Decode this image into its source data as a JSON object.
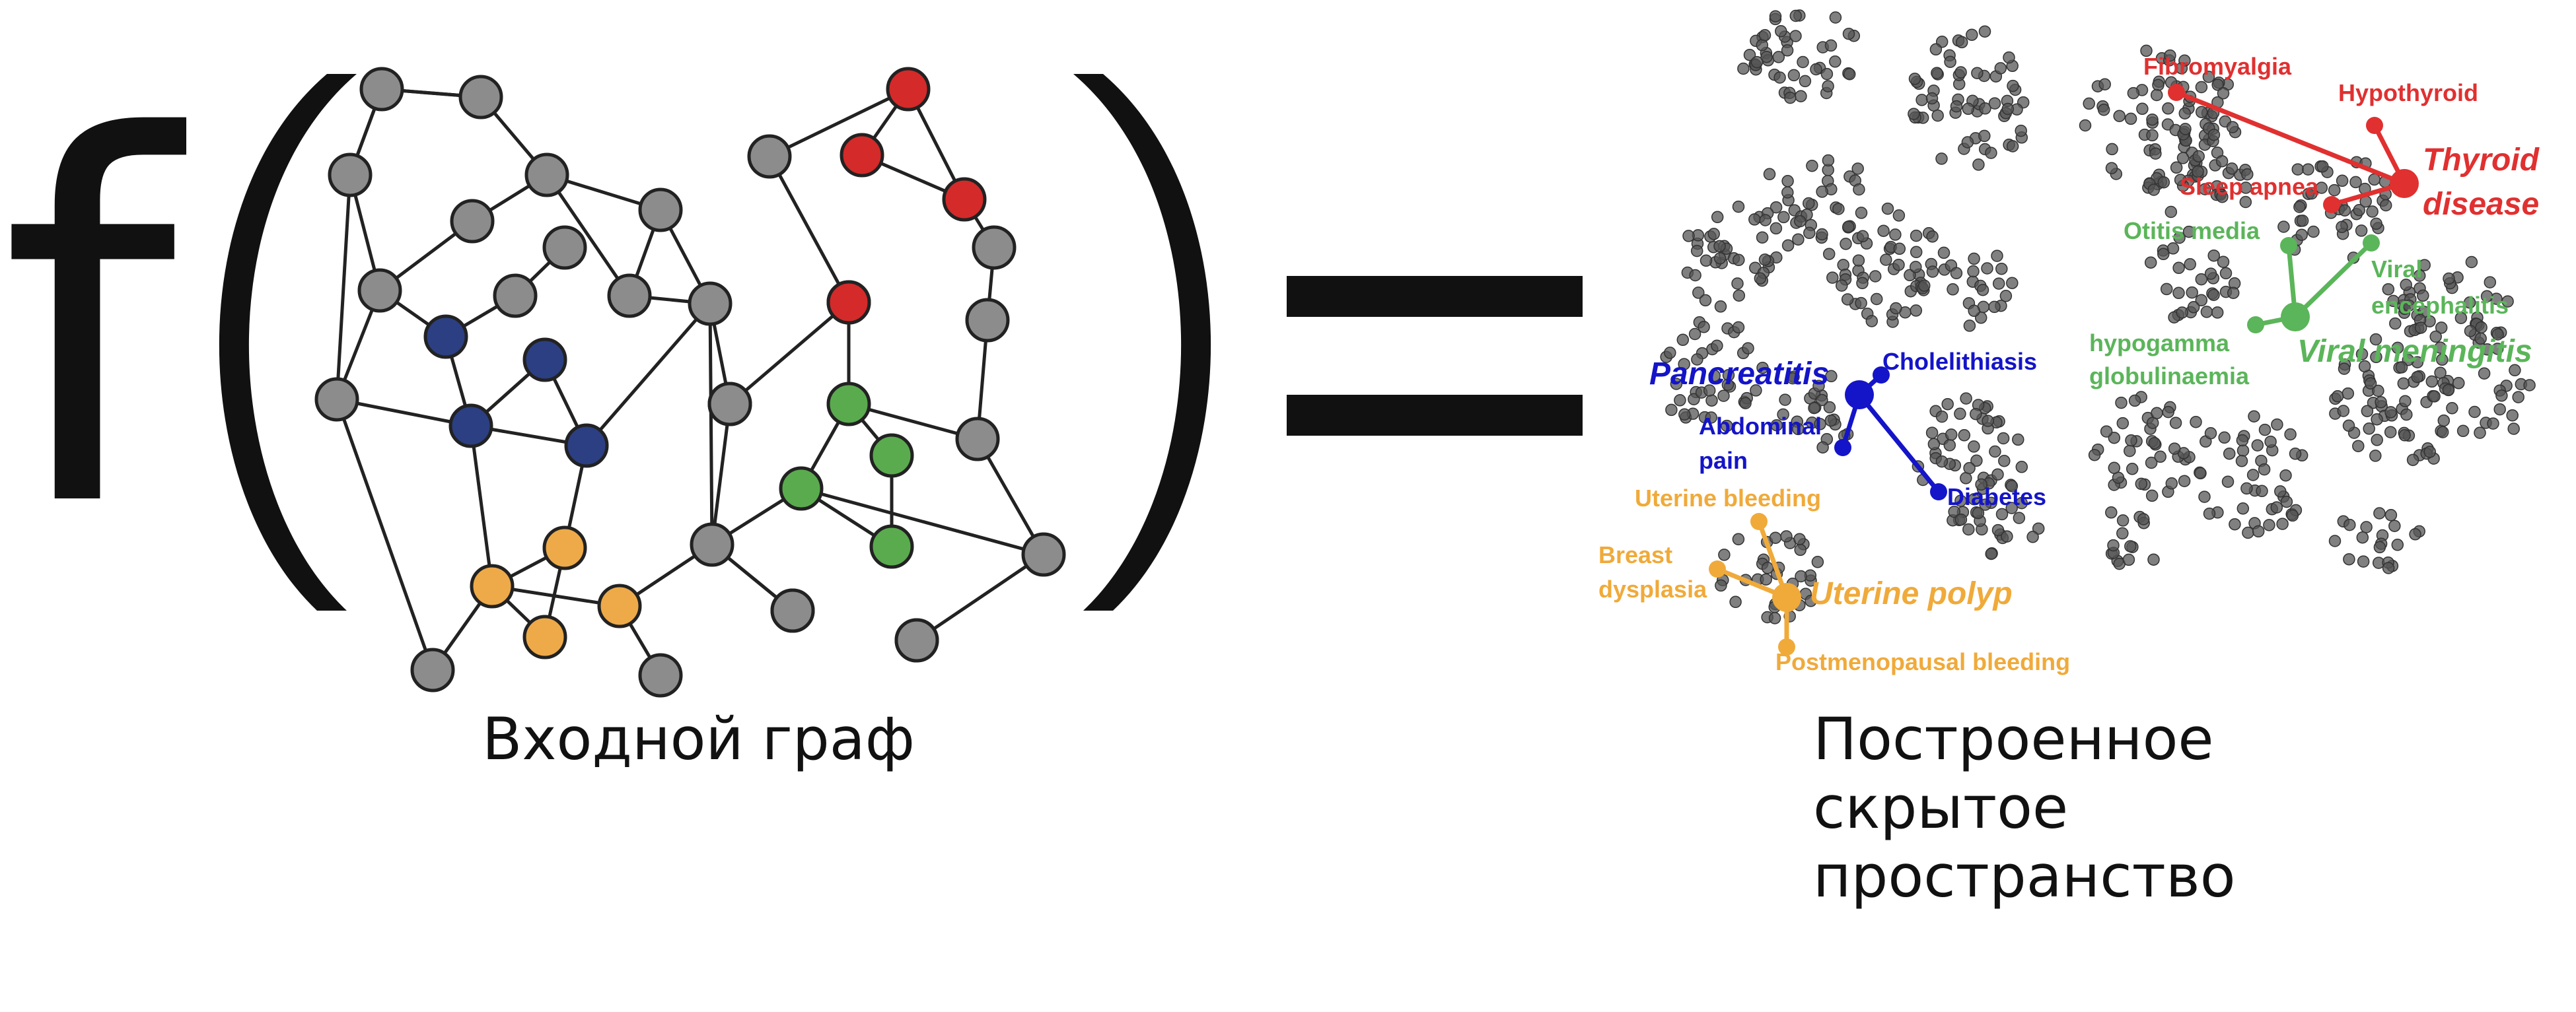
{
  "formula": {
    "function_symbol": "f",
    "open_paren": "(",
    "close_paren": ")",
    "equals": "="
  },
  "captions": {
    "input": "Входной граф",
    "output_lines": [
      "Построенное",
      "скрытое",
      "пространство"
    ]
  },
  "colors": {
    "gray": "#8c8c8c",
    "red": "#d42a2a",
    "navy": "#2b3f82",
    "green": "#5aab4e",
    "orange": "#eeaa48",
    "label_red": "#e03030",
    "label_blue": "#1414c8",
    "label_green": "#5bb55a",
    "label_orange": "#f0aa3a",
    "dots": "#555555"
  },
  "graph": {
    "nodes": [
      {
        "id": 0,
        "group": "gray"
      },
      {
        "id": 1,
        "group": "gray"
      },
      {
        "id": 2,
        "group": "gray"
      },
      {
        "id": 3,
        "group": "gray"
      },
      {
        "id": 4,
        "group": "gray"
      },
      {
        "id": 5,
        "group": "gray"
      },
      {
        "id": 6,
        "group": "gray"
      },
      {
        "id": 7,
        "group": "gray"
      },
      {
        "id": 8,
        "group": "gray"
      },
      {
        "id": 9,
        "group": "gray"
      },
      {
        "id": 10,
        "group": "gray"
      },
      {
        "id": 11,
        "group": "gray"
      },
      {
        "id": 12,
        "group": "gray"
      },
      {
        "id": 13,
        "group": "gray"
      },
      {
        "id": 14,
        "group": "gray"
      },
      {
        "id": 15,
        "group": "gray"
      },
      {
        "id": 16,
        "group": "gray"
      },
      {
        "id": 17,
        "group": "gray"
      },
      {
        "id": 18,
        "group": "gray"
      },
      {
        "id": 19,
        "group": "gray"
      },
      {
        "id": 20,
        "group": "gray"
      },
      {
        "id": 21,
        "group": "gray"
      },
      {
        "id": 22,
        "group": "gray"
      },
      {
        "id": 23,
        "group": "gray"
      },
      {
        "id": 24,
        "group": "red"
      },
      {
        "id": 25,
        "group": "red"
      },
      {
        "id": 26,
        "group": "red"
      },
      {
        "id": 27,
        "group": "red"
      },
      {
        "id": 28,
        "group": "navy"
      },
      {
        "id": 29,
        "group": "navy"
      },
      {
        "id": 30,
        "group": "navy"
      },
      {
        "id": 31,
        "group": "navy"
      },
      {
        "id": 32,
        "group": "green"
      },
      {
        "id": 33,
        "group": "green"
      },
      {
        "id": 34,
        "group": "green"
      },
      {
        "id": 35,
        "group": "green"
      },
      {
        "id": 36,
        "group": "orange"
      },
      {
        "id": 37,
        "group": "orange"
      },
      {
        "id": 38,
        "group": "orange"
      },
      {
        "id": 39,
        "group": "orange"
      },
      {
        "id": 40,
        "group": "gray"
      },
      {
        "id": 41,
        "group": "gray"
      }
    ],
    "edges": [
      [
        0,
        1
      ],
      [
        1,
        4
      ],
      [
        1,
        7
      ],
      [
        1,
        11
      ],
      [
        2,
        3
      ],
      [
        3,
        4
      ],
      [
        3,
        5
      ],
      [
        5,
        6
      ],
      [
        5,
        9
      ],
      [
        6,
        14
      ],
      [
        8,
        10
      ],
      [
        10,
        11
      ],
      [
        11,
        13
      ],
      [
        7,
        28
      ],
      [
        28,
        12
      ],
      [
        28,
        30
      ],
      [
        30,
        29
      ],
      [
        29,
        31
      ],
      [
        30,
        31
      ],
      [
        31,
        15
      ],
      [
        15,
        14
      ],
      [
        15,
        27
      ],
      [
        15,
        16
      ],
      [
        27,
        26
      ],
      [
        27,
        24
      ],
      [
        24,
        25
      ],
      [
        25,
        26
      ],
      [
        24,
        27
      ],
      [
        27,
        32
      ],
      [
        32,
        33
      ],
      [
        32,
        35
      ],
      [
        33,
        34
      ],
      [
        34,
        35
      ],
      [
        35,
        16
      ],
      [
        17,
        18
      ],
      [
        17,
        19
      ],
      [
        19,
        20
      ],
      [
        20,
        21
      ],
      [
        19,
        23
      ],
      [
        23,
        21
      ],
      [
        35,
        21
      ],
      [
        36,
        37
      ],
      [
        37,
        38
      ],
      [
        38,
        39
      ],
      [
        39,
        36
      ],
      [
        36,
        7
      ],
      [
        31,
        37
      ],
      [
        38,
        16
      ],
      [
        16,
        22
      ],
      [
        16,
        15
      ],
      [
        36,
        40
      ],
      [
        38,
        41
      ]
    ]
  },
  "embedding": {
    "clusters": [
      {
        "name": "red",
        "center": {
          "label": "Thyroid disease",
          "lines": [
            "Thyroid",
            "disease"
          ]
        },
        "members": [
          {
            "label": "Fibromyalgia"
          },
          {
            "label": "Hypothyroid"
          },
          {
            "label": "Sleep apnea"
          }
        ]
      },
      {
        "name": "green",
        "center": {
          "label": "Viral meningitis",
          "lines": [
            "Viral meningitis"
          ]
        },
        "members": [
          {
            "label": "Otitis media"
          },
          {
            "label": "Viral encephalitis",
            "lines": [
              "Viral",
              "encephalitis"
            ]
          },
          {
            "label": "hypogamma globulinaemia",
            "lines": [
              "hypogamma",
              "globulinaemia"
            ]
          }
        ]
      },
      {
        "name": "blue",
        "center": {
          "label": "Pancreatitis",
          "lines": [
            "Pancreatitis"
          ]
        },
        "members": [
          {
            "label": "Cholelithiasis"
          },
          {
            "label": "Abdominal pain",
            "lines": [
              "Abdominal",
              "pain"
            ]
          },
          {
            "label": "Diabetes"
          }
        ]
      },
      {
        "name": "orange",
        "center": {
          "label": "Uterine polyp",
          "lines": [
            "Uterine polyp"
          ]
        },
        "members": [
          {
            "label": "Uterine bleeding"
          },
          {
            "label": "Breast dysplasia",
            "lines": [
              "Breast",
              "dysplasia"
            ]
          },
          {
            "label": "Postmenopausal bleeding"
          }
        ]
      }
    ]
  }
}
